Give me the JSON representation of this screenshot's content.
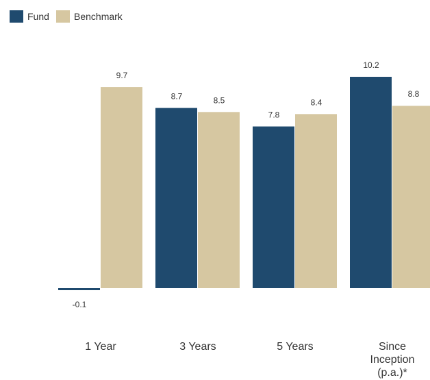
{
  "chart_data": {
    "type": "bar",
    "categories": [
      "1 Year",
      "3 Years",
      "5 Years",
      "Since Inception (p.a.)*"
    ],
    "category_lines": [
      [
        "1 Year"
      ],
      [
        "3 Years"
      ],
      [
        "5 Years"
      ],
      [
        "Since",
        "Inception",
        "(p.a.)*"
      ]
    ],
    "series": [
      {
        "name": "Fund",
        "color": "#1f4a6e",
        "values": [
          -0.1,
          8.7,
          7.8,
          10.2
        ],
        "labels": [
          "-0.1",
          "8.7",
          "7.8",
          "10.2"
        ]
      },
      {
        "name": "Benchmark",
        "color": "#d6c7a1",
        "values": [
          9.7,
          8.5,
          8.4,
          8.8
        ],
        "labels": [
          "9.7",
          "8.5",
          "8.4",
          "8.8"
        ]
      }
    ],
    "legend_position": "top-left",
    "grid": false
  }
}
